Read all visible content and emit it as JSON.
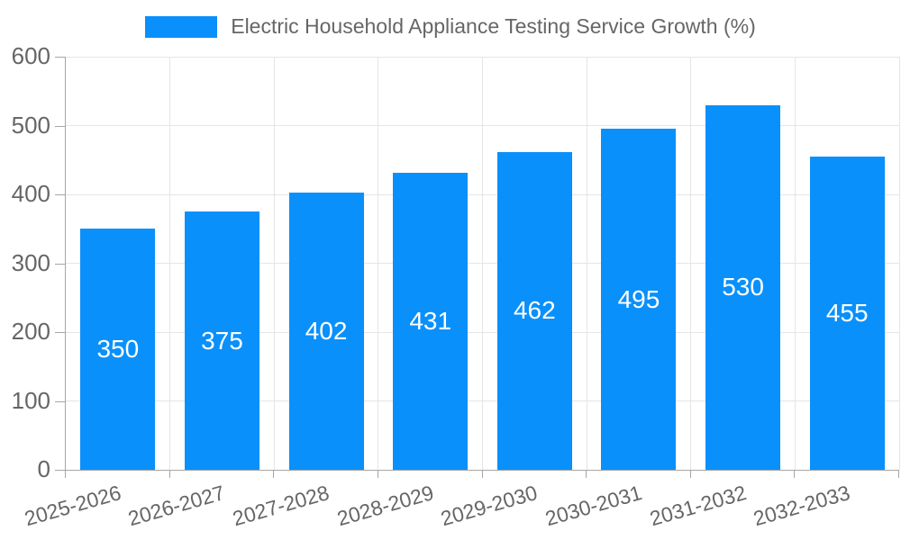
{
  "chart_data": {
    "type": "bar",
    "title": "",
    "legend": {
      "label": "Electric Household Appliance Testing Service Growth (%)",
      "position": "top"
    },
    "categories": [
      "2025-2026",
      "2026-2027",
      "2027-2028",
      "2028-2029",
      "2029-2030",
      "2030-2031",
      "2031-2032",
      "2032-2033"
    ],
    "series": [
      {
        "name": "Electric Household Appliance Testing Service Growth (%)",
        "values": [
          350,
          375,
          402,
          431,
          462,
          495,
          530,
          455
        ]
      }
    ],
    "xlabel": "",
    "ylabel": "",
    "ylim": [
      0,
      600
    ],
    "yticks": [
      0,
      100,
      200,
      300,
      400,
      500,
      600
    ],
    "grid": true,
    "colors": {
      "bar": "#0a90fb",
      "grid": "#e5e5e5",
      "axis": "#a6a6a6",
      "tick_text": "#666666",
      "bar_label": "#ffffff",
      "background": "#ffffff"
    }
  }
}
